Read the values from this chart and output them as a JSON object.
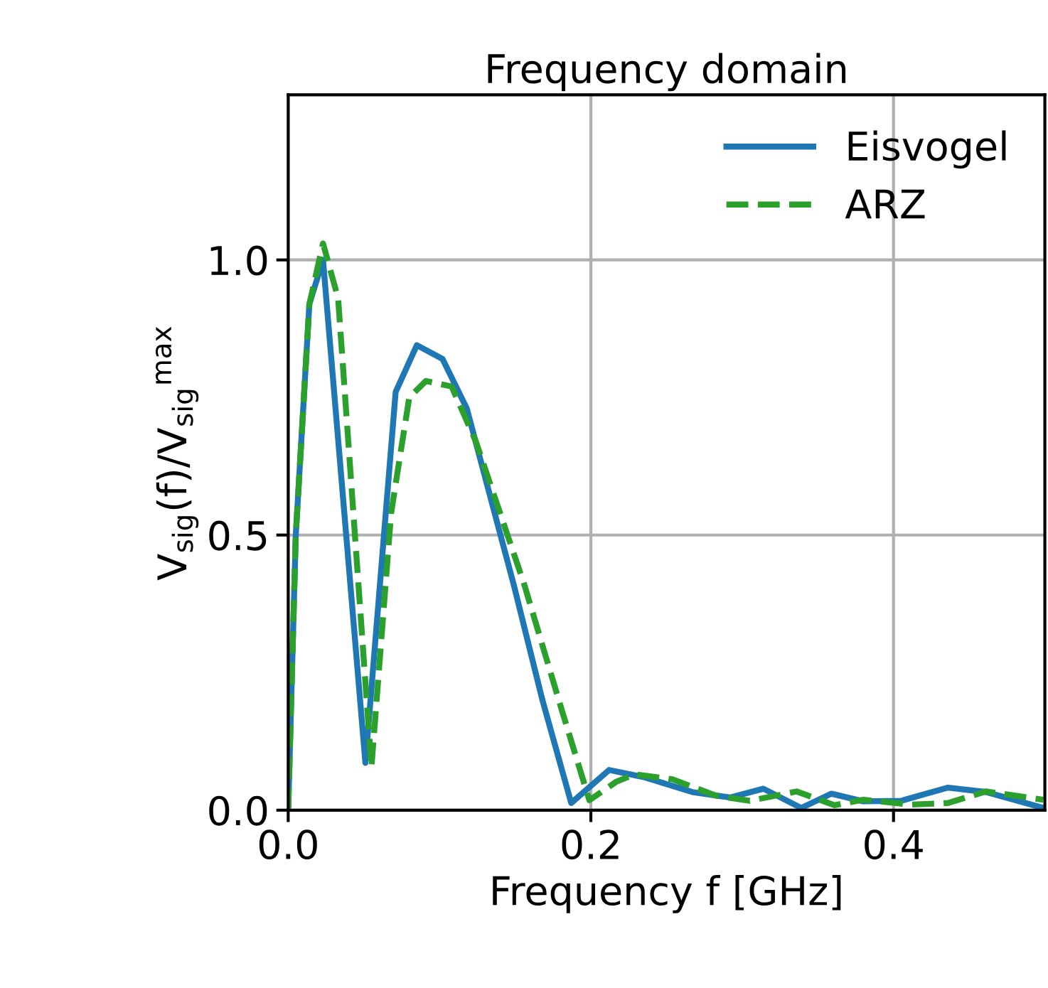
{
  "chart_data": {
    "type": "line",
    "title": "Frequency domain",
    "xlabel": "Frequency f [GHz]",
    "ylabel": "V$_{sig}$(f)/V$_{sig}$$^{max}$",
    "xlim": [
      0,
      0.5
    ],
    "ylim": [
      0,
      1.3
    ],
    "xticks": [
      {
        "value": 0,
        "label": "0.0"
      },
      0.2,
      0.4
    ],
    "yticks": [
      {
        "value": 0,
        "label": "0.0"
      },
      0.5,
      {
        "value": 1,
        "label": "1.0"
      }
    ],
    "grid": true,
    "legend": "top right",
    "series": [
      {
        "name": "Eisvogel",
        "color": "#1f77b4",
        "line_style": "solid",
        "x": [
          0,
          0.005,
          0.014,
          0.023,
          0.051,
          0.071,
          0.085,
          0.102,
          0.118,
          0.149,
          0.168,
          0.187,
          0.212,
          0.235,
          0.267,
          0.292,
          0.314,
          0.339,
          0.359,
          0.38,
          0.405,
          0.436,
          0.461,
          0.499
        ],
        "values": [
          0,
          0.5,
          0.92,
          1.0,
          0.086,
          0.76,
          0.845,
          0.82,
          0.73,
          0.41,
          0.2,
          0.013,
          0.073,
          0.06,
          0.033,
          0.023,
          0.039,
          0.004,
          0.03,
          0.016,
          0.017,
          0.041,
          0.033,
          0.004
        ]
      },
      {
        "name": "ARZ",
        "color": "#2ca02c",
        "line_style": "dashed",
        "x": [
          0,
          0.005,
          0.014,
          0.023,
          0.033,
          0.055,
          0.068,
          0.08,
          0.091,
          0.108,
          0.124,
          0.156,
          0.181,
          0.199,
          0.217,
          0.229,
          0.254,
          0.283,
          0.305,
          0.336,
          0.361,
          0.38,
          0.411,
          0.436,
          0.461,
          0.499
        ],
        "values": [
          0,
          0.5,
          0.92,
          1.03,
          0.93,
          0.078,
          0.54,
          0.75,
          0.78,
          0.77,
          0.67,
          0.41,
          0.18,
          0.018,
          0.052,
          0.065,
          0.056,
          0.026,
          0.017,
          0.034,
          0.009,
          0.019,
          0.01,
          0.013,
          0.034,
          0.019
        ]
      }
    ]
  }
}
